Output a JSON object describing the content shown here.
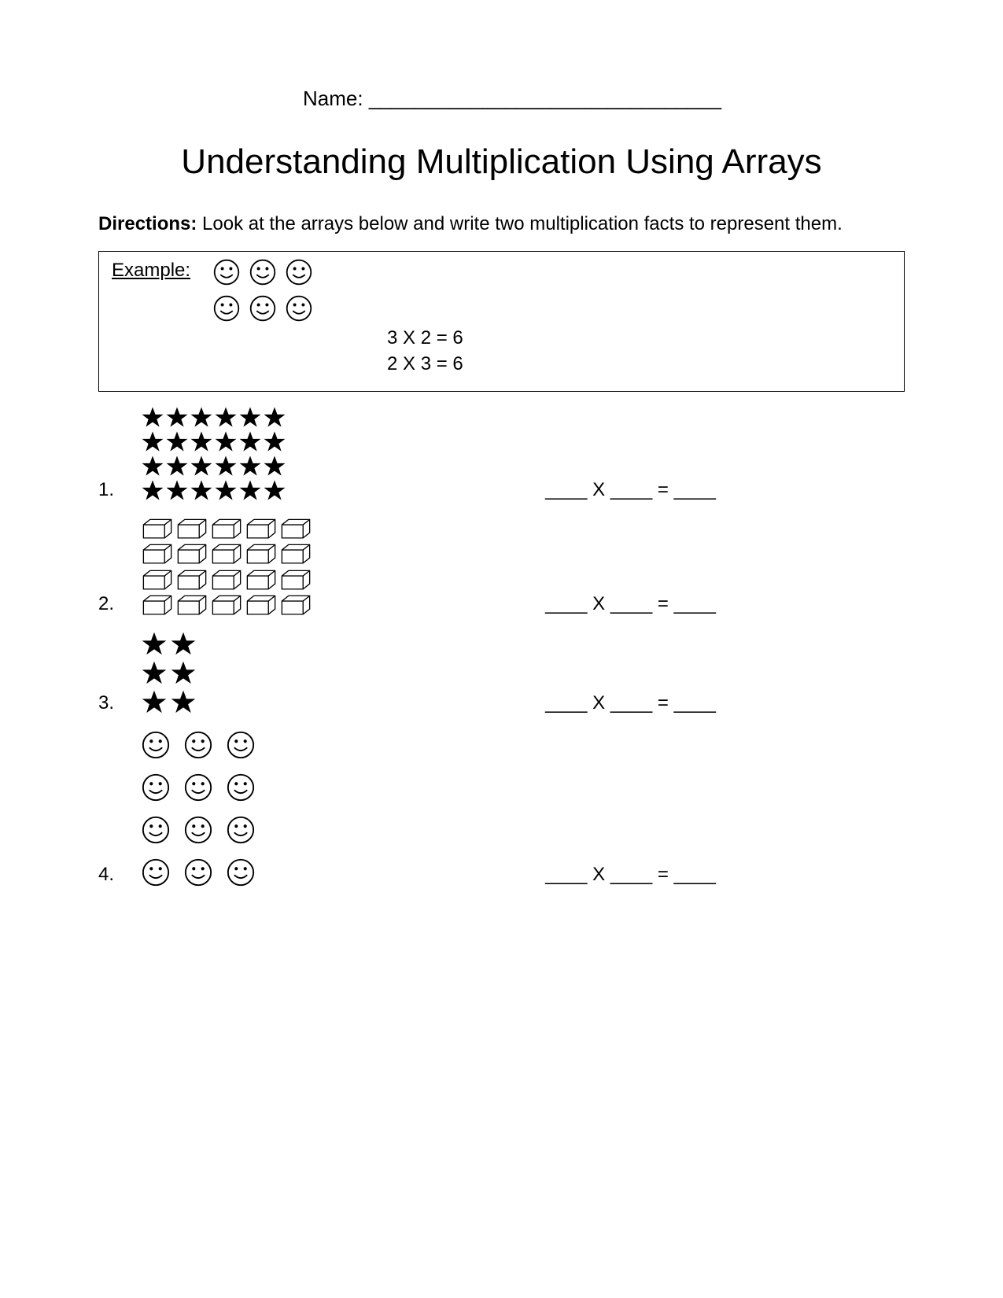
{
  "page": {
    "background_color": "#ffffff",
    "text_color": "#000000",
    "font_family": "Comic Sans MS"
  },
  "name_field": {
    "label": "Name:",
    "blank": "_______________________________"
  },
  "title": "Understanding Multiplication Using Arrays",
  "directions": {
    "label": "Directions:",
    "text": " Look at the arrays below and write two multiplication facts to represent them."
  },
  "example": {
    "label": "Example:",
    "array": {
      "rows": 2,
      "cols": 3,
      "icon": "smile",
      "icon_size": 36,
      "gap": 10
    },
    "facts": [
      "3 X 2 = 6",
      "2 X 3 = 6"
    ]
  },
  "equation_template": "____ X ____ = ____",
  "problems": [
    {
      "number": "1.",
      "array": {
        "rows": 4,
        "cols": 6,
        "icon": "star",
        "icon_size": 30,
        "gap": 1
      }
    },
    {
      "number": "2.",
      "array": {
        "rows": 4,
        "cols": 5,
        "icon": "cube",
        "icon_size": 42,
        "gap": 2
      }
    },
    {
      "number": "3.",
      "array": {
        "rows": 3,
        "cols": 2,
        "icon": "star",
        "icon_size": 34,
        "gap": 3
      }
    },
    {
      "number": "4.",
      "array": {
        "rows": 4,
        "cols": 3,
        "icon": "smile",
        "icon_size": 38,
        "gap": 16
      }
    }
  ],
  "icons": {
    "smile": {
      "stroke": "#000000",
      "fill": "none"
    },
    "star": {
      "stroke": "#000000",
      "fill": "#000000"
    },
    "cube": {
      "stroke": "#000000",
      "fill": "#ffffff"
    }
  }
}
